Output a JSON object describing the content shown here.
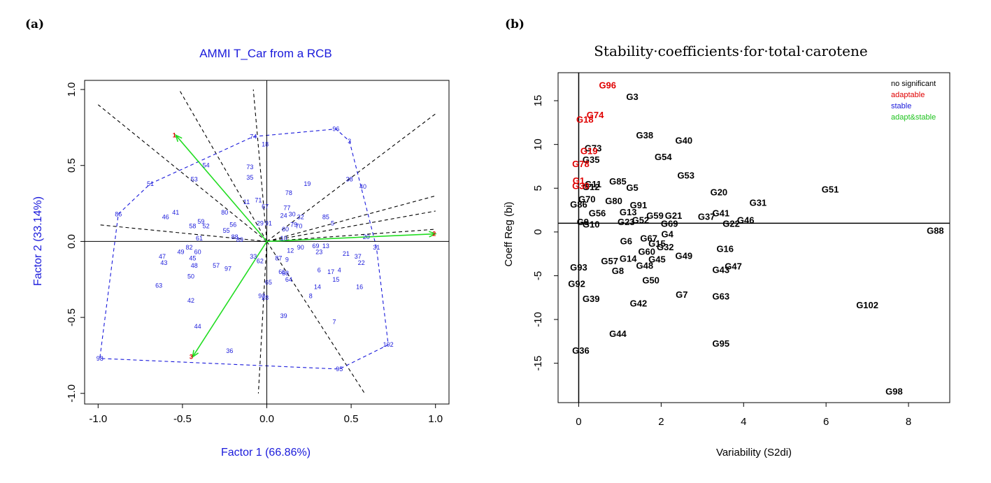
{
  "panel_labels": [
    "(a)",
    "(b)"
  ],
  "chart_data": [
    {
      "type": "scatter",
      "title": "AMMI T_Car from a RCB",
      "xlabel": "Factor 1 (66.86%)",
      "ylabel": "Factor 2 (33.14%)",
      "xlim": [
        -1.08,
        1.08
      ],
      "ylim": [
        -1.07,
        1.06
      ],
      "xticks": [
        -1.0,
        -0.5,
        0.0,
        0.5,
        1.0
      ],
      "xtick_labels": [
        "-1.0",
        "-0.5",
        "0.0",
        "0.5",
        "1.0"
      ],
      "yticks": [
        -1.0,
        -0.5,
        0.0,
        0.5,
        1.0
      ],
      "ytick_labels": [
        "-1.0",
        "-0.5",
        "0.0",
        "0.5",
        "1.0"
      ],
      "colors": {
        "text": "#1a1adb",
        "environment": "#e00000",
        "vector": "#22dd22",
        "hull": "#1a1adb",
        "sector": "#000000"
      },
      "environments": [
        {
          "label": "1",
          "x": -0.54,
          "y": 0.7
        },
        {
          "label": "2",
          "x": 1.0,
          "y": 0.05
        },
        {
          "label": "3",
          "x": -0.44,
          "y": -0.76
        }
      ],
      "genotypes": [
        {
          "label": "96",
          "x": 0.41,
          "y": 0.74
        },
        {
          "label": "3",
          "x": 0.49,
          "y": 0.66
        },
        {
          "label": "74",
          "x": -0.08,
          "y": 0.69
        },
        {
          "label": "18",
          "x": -0.01,
          "y": 0.64
        },
        {
          "label": "54",
          "x": -0.36,
          "y": 0.5
        },
        {
          "label": "73",
          "x": -0.1,
          "y": 0.49
        },
        {
          "label": "35",
          "x": -0.1,
          "y": 0.42
        },
        {
          "label": "53",
          "x": -0.43,
          "y": 0.41
        },
        {
          "label": "51",
          "x": -0.69,
          "y": 0.38
        },
        {
          "label": "38",
          "x": 0.49,
          "y": 0.41
        },
        {
          "label": "40",
          "x": 0.57,
          "y": 0.36
        },
        {
          "label": "19",
          "x": 0.24,
          "y": 0.38
        },
        {
          "label": "78",
          "x": 0.13,
          "y": 0.32
        },
        {
          "label": "11",
          "x": -0.12,
          "y": 0.26
        },
        {
          "label": "71",
          "x": -0.05,
          "y": 0.27
        },
        {
          "label": "77",
          "x": 0.12,
          "y": 0.22
        },
        {
          "label": "67",
          "x": -0.01,
          "y": 0.23
        },
        {
          "label": "86",
          "x": -0.88,
          "y": 0.18
        },
        {
          "label": "46",
          "x": -0.6,
          "y": 0.16
        },
        {
          "label": "41",
          "x": -0.54,
          "y": 0.19
        },
        {
          "label": "80",
          "x": -0.25,
          "y": 0.19
        },
        {
          "label": "30",
          "x": 0.15,
          "y": 0.18
        },
        {
          "label": "24",
          "x": 0.1,
          "y": 0.17
        },
        {
          "label": "32",
          "x": 0.2,
          "y": 0.16
        },
        {
          "label": "85",
          "x": 0.35,
          "y": 0.16
        },
        {
          "label": "5",
          "x": 0.39,
          "y": 0.12
        },
        {
          "label": "59",
          "x": -0.39,
          "y": 0.13
        },
        {
          "label": "58",
          "x": -0.44,
          "y": 0.1
        },
        {
          "label": "52",
          "x": -0.36,
          "y": 0.1
        },
        {
          "label": "56",
          "x": -0.2,
          "y": 0.11
        },
        {
          "label": "55",
          "x": -0.24,
          "y": 0.07
        },
        {
          "label": "29",
          "x": -0.04,
          "y": 0.12
        },
        {
          "label": "91",
          "x": 0.01,
          "y": 0.12
        },
        {
          "label": "79",
          "x": 0.16,
          "y": 0.11
        },
        {
          "label": "70",
          "x": 0.19,
          "y": 0.1
        },
        {
          "label": "60",
          "x": 0.11,
          "y": 0.08
        },
        {
          "label": "20",
          "x": 0.59,
          "y": 0.03
        },
        {
          "label": "61",
          "x": -0.4,
          "y": 0.02
        },
        {
          "label": "88",
          "x": -0.19,
          "y": 0.03
        },
        {
          "label": "89",
          "x": -0.16,
          "y": 0.01
        },
        {
          "label": "10",
          "x": 0.1,
          "y": 0.02
        },
        {
          "label": "31",
          "x": 0.65,
          "y": -0.04
        },
        {
          "label": "69",
          "x": 0.29,
          "y": -0.03
        },
        {
          "label": "13",
          "x": 0.35,
          "y": -0.03
        },
        {
          "label": "90",
          "x": 0.2,
          "y": -0.04
        },
        {
          "label": "12",
          "x": 0.14,
          "y": -0.06
        },
        {
          "label": "23",
          "x": 0.31,
          "y": -0.07
        },
        {
          "label": "21",
          "x": 0.47,
          "y": -0.08
        },
        {
          "label": "37",
          "x": 0.54,
          "y": -0.1
        },
        {
          "label": "22",
          "x": 0.56,
          "y": -0.14
        },
        {
          "label": "82",
          "x": -0.46,
          "y": -0.04
        },
        {
          "label": "49",
          "x": -0.51,
          "y": -0.07
        },
        {
          "label": "60",
          "x": -0.41,
          "y": -0.07
        },
        {
          "label": "47",
          "x": -0.62,
          "y": -0.1
        },
        {
          "label": "43",
          "x": -0.61,
          "y": -0.14
        },
        {
          "label": "45",
          "x": -0.44,
          "y": -0.11
        },
        {
          "label": "48",
          "x": -0.43,
          "y": -0.16
        },
        {
          "label": "57",
          "x": -0.3,
          "y": -0.16
        },
        {
          "label": "97",
          "x": -0.23,
          "y": -0.18
        },
        {
          "label": "33",
          "x": -0.08,
          "y": -0.1
        },
        {
          "label": "62",
          "x": -0.04,
          "y": -0.13
        },
        {
          "label": "87",
          "x": 0.07,
          "y": -0.11
        },
        {
          "label": "9",
          "x": 0.12,
          "y": -0.12
        },
        {
          "label": "50",
          "x": -0.45,
          "y": -0.23
        },
        {
          "label": "66",
          "x": 0.09,
          "y": -0.2
        },
        {
          "label": "68",
          "x": 0.11,
          "y": -0.21
        },
        {
          "label": "64",
          "x": 0.13,
          "y": -0.25
        },
        {
          "label": "6",
          "x": 0.31,
          "y": -0.19
        },
        {
          "label": "17",
          "x": 0.38,
          "y": -0.2
        },
        {
          "label": "4",
          "x": 0.43,
          "y": -0.19
        },
        {
          "label": "15",
          "x": 0.41,
          "y": -0.25
        },
        {
          "label": "16",
          "x": 0.55,
          "y": -0.3
        },
        {
          "label": "14",
          "x": 0.3,
          "y": -0.3
        },
        {
          "label": "63",
          "x": -0.64,
          "y": -0.29
        },
        {
          "label": "65",
          "x": 0.01,
          "y": -0.27
        },
        {
          "label": "8",
          "x": 0.26,
          "y": -0.36
        },
        {
          "label": "92",
          "x": -0.03,
          "y": -0.36
        },
        {
          "label": "28",
          "x": -0.01,
          "y": -0.37
        },
        {
          "label": "42",
          "x": -0.45,
          "y": -0.39
        },
        {
          "label": "39",
          "x": 0.1,
          "y": -0.49
        },
        {
          "label": "7",
          "x": 0.4,
          "y": -0.53
        },
        {
          "label": "44",
          "x": -0.41,
          "y": -0.56
        },
        {
          "label": "36",
          "x": -0.22,
          "y": -0.72
        },
        {
          "label": "102",
          "x": 0.72,
          "y": -0.68
        },
        {
          "label": "95",
          "x": 0.43,
          "y": -0.84
        },
        {
          "label": "98",
          "x": -0.99,
          "y": -0.77
        }
      ],
      "hull_order": [
        "86",
        "51",
        "74",
        "96",
        "3",
        "31",
        "102",
        "95",
        "98",
        "86"
      ],
      "sector_rays": [
        {
          "x": -1.0,
          "y": 0.9
        },
        {
          "x": -0.52,
          "y": 1.0
        },
        {
          "x": -0.08,
          "y": 1.0
        },
        {
          "x": 1.0,
          "y": 0.84
        },
        {
          "x": 1.0,
          "y": 0.3
        },
        {
          "x": 1.0,
          "y": 0.2
        },
        {
          "x": 1.0,
          "y": 0.08
        },
        {
          "x": -1.0,
          "y": 0.11
        },
        {
          "x": 0.58,
          "y": -1.0
        },
        {
          "x": -0.05,
          "y": -1.0
        }
      ]
    },
    {
      "type": "scatter",
      "title": "Stability·coefficients·for·total·carotene",
      "xlabel": "Variability (S2di)",
      "ylabel": "Coeff Reg (bi)",
      "xlim": [
        -0.5,
        9.0
      ],
      "ylim": [
        -19.5,
        18.2
      ],
      "xticks": [
        0,
        2,
        4,
        6,
        8
      ],
      "xtick_labels": [
        "0",
        "2",
        "4",
        "6",
        "8"
      ],
      "yticks": [
        -15,
        -10,
        -5,
        0,
        5,
        10,
        15
      ],
      "ytick_labels": [
        "-15",
        "-10",
        "-5",
        "0",
        "5",
        "10",
        "15"
      ],
      "ref_lines": {
        "x": 0,
        "y": 1
      },
      "legend": {
        "position": "top-right",
        "entries": [
          {
            "label": "no significant",
            "color": "#000000"
          },
          {
            "label": "adaptable",
            "color": "#e00000"
          },
          {
            "label": "stable",
            "color": "#1a1adb"
          },
          {
            "label": "adapt&stable",
            "color": "#1ec31e"
          }
        ]
      },
      "colors": {
        "no_significant": "#000000",
        "adaptable": "#e00000"
      },
      "points": [
        {
          "label": "G96",
          "x": 0.7,
          "y": 16.8,
          "group": "adaptable"
        },
        {
          "label": "G3",
          "x": 1.3,
          "y": 15.5,
          "group": "no_significant"
        },
        {
          "label": "G74",
          "x": 0.4,
          "y": 13.4,
          "group": "adaptable"
        },
        {
          "label": "G18",
          "x": 0.15,
          "y": 12.9,
          "group": "adaptable"
        },
        {
          "label": "G38",
          "x": 1.6,
          "y": 11.1,
          "group": "no_significant"
        },
        {
          "label": "G40",
          "x": 2.55,
          "y": 10.5,
          "group": "no_significant"
        },
        {
          "label": "G73",
          "x": 0.35,
          "y": 9.6,
          "group": "no_significant"
        },
        {
          "label": "G19",
          "x": 0.25,
          "y": 9.3,
          "group": "adaptable"
        },
        {
          "label": "G35",
          "x": 0.3,
          "y": 8.3,
          "group": "no_significant"
        },
        {
          "label": "G78",
          "x": 0.05,
          "y": 7.8,
          "group": "adaptable"
        },
        {
          "label": "G54",
          "x": 2.05,
          "y": 8.6,
          "group": "no_significant"
        },
        {
          "label": "G53",
          "x": 2.6,
          "y": 6.5,
          "group": "no_significant"
        },
        {
          "label": "G85",
          "x": 0.95,
          "y": 5.8,
          "group": "no_significant"
        },
        {
          "label": "G5",
          "x": 1.3,
          "y": 5.1,
          "group": "no_significant"
        },
        {
          "label": "G11",
          "x": 0.35,
          "y": 5.5,
          "group": "no_significant"
        },
        {
          "label": "G1",
          "x": 0.0,
          "y": 5.9,
          "group": "adaptable"
        },
        {
          "label": "G12",
          "x": 0.3,
          "y": 5.2,
          "group": "no_significant"
        },
        {
          "label": "G30",
          "x": 0.05,
          "y": 5.3,
          "group": "adaptable"
        },
        {
          "label": "G20",
          "x": 3.4,
          "y": 4.6,
          "group": "no_significant"
        },
        {
          "label": "G51",
          "x": 6.1,
          "y": 4.9,
          "group": "no_significant"
        },
        {
          "label": "G31",
          "x": 4.35,
          "y": 3.4,
          "group": "no_significant"
        },
        {
          "label": "G80",
          "x": 0.85,
          "y": 3.6,
          "group": "no_significant"
        },
        {
          "label": "G70",
          "x": 0.2,
          "y": 3.8,
          "group": "no_significant"
        },
        {
          "label": "G91",
          "x": 1.45,
          "y": 3.1,
          "group": "no_significant"
        },
        {
          "label": "G86",
          "x": 0.0,
          "y": 3.2,
          "group": "no_significant"
        },
        {
          "label": "G13",
          "x": 1.2,
          "y": 2.3,
          "group": "no_significant"
        },
        {
          "label": "G56",
          "x": 0.45,
          "y": 2.2,
          "group": "no_significant"
        },
        {
          "label": "G59",
          "x": 1.85,
          "y": 1.9,
          "group": "no_significant"
        },
        {
          "label": "G21",
          "x": 2.3,
          "y": 1.9,
          "group": "no_significant"
        },
        {
          "label": "G41",
          "x": 3.45,
          "y": 2.2,
          "group": "no_significant"
        },
        {
          "label": "G37",
          "x": 3.1,
          "y": 1.8,
          "group": "no_significant"
        },
        {
          "label": "G46",
          "x": 4.05,
          "y": 1.4,
          "group": "no_significant"
        },
        {
          "label": "G22",
          "x": 3.7,
          "y": 1.0,
          "group": "no_significant"
        },
        {
          "label": "G52",
          "x": 1.5,
          "y": 1.4,
          "group": "no_significant"
        },
        {
          "label": "G23",
          "x": 1.15,
          "y": 1.2,
          "group": "no_significant"
        },
        {
          "label": "G69",
          "x": 2.2,
          "y": 1.0,
          "group": "no_significant"
        },
        {
          "label": "G9",
          "x": 0.1,
          "y": 1.2,
          "group": "no_significant"
        },
        {
          "label": "G10",
          "x": 0.3,
          "y": 0.9,
          "group": "no_significant"
        },
        {
          "label": "G4",
          "x": 2.15,
          "y": -0.2,
          "group": "no_significant"
        },
        {
          "label": "G6",
          "x": 1.15,
          "y": -1.0,
          "group": "no_significant"
        },
        {
          "label": "G67",
          "x": 1.7,
          "y": -0.7,
          "group": "no_significant"
        },
        {
          "label": "G15",
          "x": 1.9,
          "y": -1.3,
          "group": "no_significant"
        },
        {
          "label": "G32",
          "x": 2.1,
          "y": -1.7,
          "group": "no_significant"
        },
        {
          "label": "G16",
          "x": 3.55,
          "y": -1.9,
          "group": "no_significant"
        },
        {
          "label": "G60",
          "x": 1.65,
          "y": -2.2,
          "group": "no_significant"
        },
        {
          "label": "G49",
          "x": 2.55,
          "y": -2.7,
          "group": "no_significant"
        },
        {
          "label": "G14",
          "x": 1.2,
          "y": -3.0,
          "group": "no_significant"
        },
        {
          "label": "G45",
          "x": 1.9,
          "y": -3.1,
          "group": "no_significant"
        },
        {
          "label": "G57",
          "x": 0.75,
          "y": -3.3,
          "group": "no_significant"
        },
        {
          "label": "G48",
          "x": 1.6,
          "y": -3.8,
          "group": "no_significant"
        },
        {
          "label": "G47",
          "x": 3.75,
          "y": -3.9,
          "group": "no_significant"
        },
        {
          "label": "G43",
          "x": 3.45,
          "y": -4.3,
          "group": "no_significant"
        },
        {
          "label": "G8",
          "x": 0.95,
          "y": -4.4,
          "group": "no_significant"
        },
        {
          "label": "G93",
          "x": 0.0,
          "y": -4.0,
          "group": "no_significant"
        },
        {
          "label": "G50",
          "x": 1.75,
          "y": -5.5,
          "group": "no_significant"
        },
        {
          "label": "G92",
          "x": -0.05,
          "y": -5.9,
          "group": "no_significant"
        },
        {
          "label": "G7",
          "x": 2.5,
          "y": -7.1,
          "group": "no_significant"
        },
        {
          "label": "G63",
          "x": 3.45,
          "y": -7.3,
          "group": "no_significant"
        },
        {
          "label": "G39",
          "x": 0.3,
          "y": -7.6,
          "group": "no_significant"
        },
        {
          "label": "G42",
          "x": 1.45,
          "y": -8.1,
          "group": "no_significant"
        },
        {
          "label": "G102",
          "x": 7.0,
          "y": -8.3,
          "group": "no_significant"
        },
        {
          "label": "G44",
          "x": 0.95,
          "y": -11.6,
          "group": "no_significant"
        },
        {
          "label": "G95",
          "x": 3.45,
          "y": -12.7,
          "group": "no_significant"
        },
        {
          "label": "G36",
          "x": 0.05,
          "y": -13.5,
          "group": "no_significant"
        },
        {
          "label": "G98",
          "x": 7.65,
          "y": -18.2,
          "group": "no_significant"
        },
        {
          "label": "G88",
          "x": 8.65,
          "y": 0.2,
          "group": "no_significant"
        }
      ]
    }
  ]
}
